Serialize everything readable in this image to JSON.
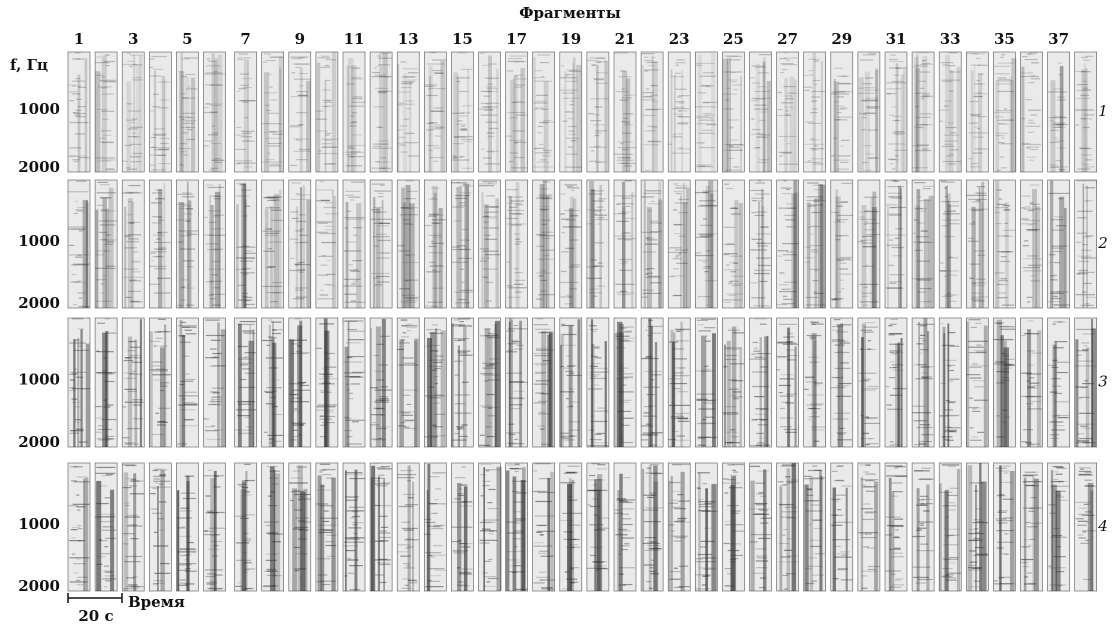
{
  "title": "Фрагменты",
  "fragment_numbers": [
    1,
    3,
    5,
    7,
    9,
    11,
    13,
    15,
    17,
    19,
    21,
    23,
    25,
    27,
    29,
    31,
    33,
    35,
    37
  ],
  "y_axis_label": "f, Гц",
  "y_ticks": [
    1000,
    2000
  ],
  "row_labels": [
    "1",
    "2",
    "3",
    "4"
  ],
  "scale_bar": "20 с",
  "x_axis_label": "Время"
}
